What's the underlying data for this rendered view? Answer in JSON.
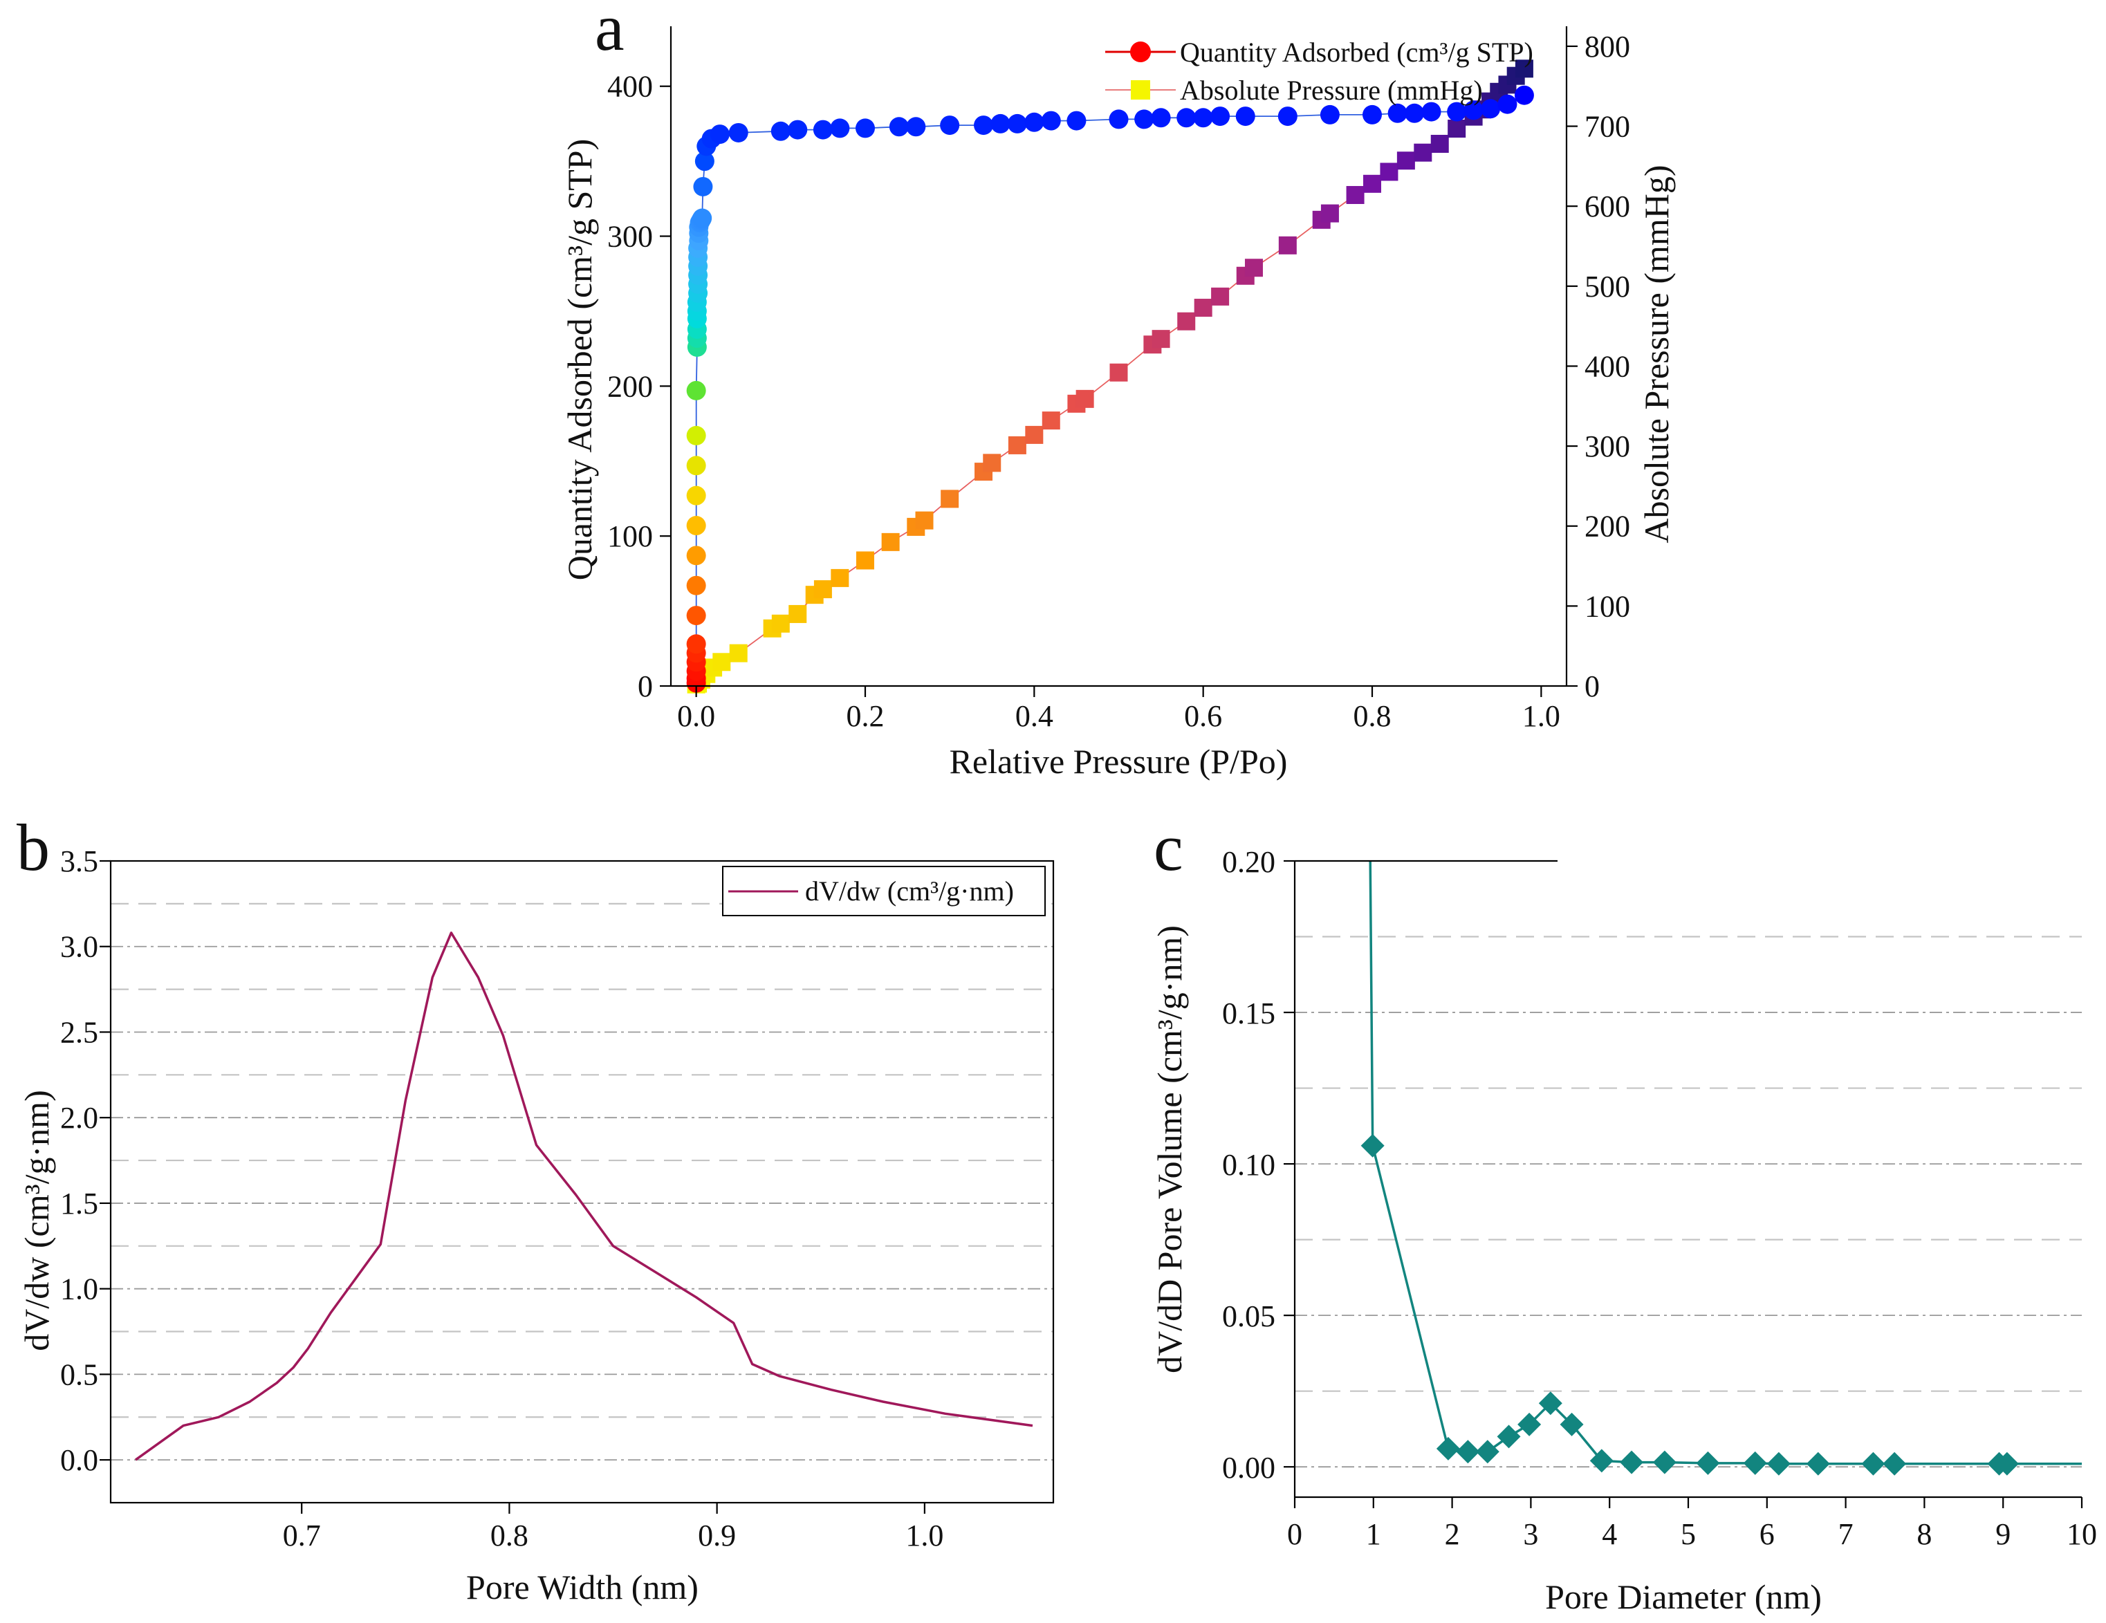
{
  "panels": {
    "a": {
      "letter": "a"
    },
    "b": {
      "letter": "b"
    },
    "c": {
      "letter": "c"
    }
  },
  "colors": {
    "panel_b_line": "#a0185a",
    "panel_c_line": "#12857f",
    "series_a1_start": "#ff0000",
    "series_a2_start": "#f5f500"
  },
  "chart_data": [
    {
      "id": "a",
      "type": "scatter",
      "title": "",
      "xlabel": "Relative Pressure (P/Po)",
      "ylabel": "Quantity Adsorbed (cm³/g STP)",
      "y2label": "Absolute Pressure (mmHg)",
      "xlim": [
        -0.03,
        1.03
      ],
      "ylim": [
        0,
        440
      ],
      "y2lim": [
        0,
        825
      ],
      "xticks": [
        0.0,
        0.2,
        0.4,
        0.6,
        0.8,
        1.0
      ],
      "xtick_labels": [
        "0.0",
        "0.2",
        "0.4",
        "0.6",
        "0.8",
        "1.0"
      ],
      "yticks": [
        0,
        100,
        200,
        300,
        400
      ],
      "ytick_labels": [
        "0",
        "100",
        "200",
        "300",
        "400"
      ],
      "y2ticks": [
        0,
        100,
        200,
        300,
        400,
        500,
        600,
        700,
        800
      ],
      "y2tick_labels": [
        "0",
        "100",
        "200",
        "300",
        "400",
        "500",
        "600",
        "700",
        "800"
      ],
      "legend": [
        "Quantity Adsorbed (cm³/g STP)",
        "Absolute Pressure (mmHg)"
      ],
      "legend_position": "top-right",
      "series": [
        {
          "name": "Quantity Adsorbed (cm³/g STP)",
          "axis": "left",
          "marker": "circle",
          "x": [
            0.0,
            0.0,
            0.0,
            0.0,
            0.0,
            0.0,
            0.0,
            0.0,
            0.0,
            0.0,
            0.0,
            0.0,
            0.0,
            0.0,
            0.001,
            0.001,
            0.001,
            0.001,
            0.001,
            0.001,
            0.002,
            0.002,
            0.002,
            0.002,
            0.002,
            0.002,
            0.003,
            0.003,
            0.003,
            0.004,
            0.005,
            0.006,
            0.007,
            0.008,
            0.01,
            0.012,
            0.018,
            0.028,
            0.05,
            0.1,
            0.12,
            0.15,
            0.17,
            0.2,
            0.24,
            0.26,
            0.3,
            0.34,
            0.36,
            0.38,
            0.4,
            0.42,
            0.45,
            0.5,
            0.53,
            0.55,
            0.58,
            0.6,
            0.62,
            0.65,
            0.7,
            0.75,
            0.8,
            0.83,
            0.85,
            0.87,
            0.9,
            0.92,
            0.94,
            0.96,
            0.98
          ],
          "y": [
            2,
            5,
            10,
            16,
            22,
            28,
            47,
            67,
            87,
            107,
            127,
            147,
            167,
            197,
            226,
            232,
            238,
            245,
            250,
            256,
            262,
            268,
            274,
            280,
            286,
            292,
            297,
            302,
            306,
            309,
            310,
            311,
            312,
            333,
            350,
            360,
            365,
            368,
            369,
            370,
            371,
            371,
            372,
            372,
            373,
            373,
            374,
            374,
            375,
            375,
            376,
            377,
            377,
            378,
            378,
            379,
            379,
            379,
            380,
            380,
            380,
            381,
            381,
            382,
            382,
            383,
            383,
            384,
            385,
            388,
            394
          ]
        },
        {
          "name": "Absolute Pressure (mmHg)",
          "axis": "right",
          "marker": "square",
          "x": [
            0.0,
            0.002,
            0.006,
            0.012,
            0.02,
            0.03,
            0.05,
            0.09,
            0.1,
            0.12,
            0.14,
            0.15,
            0.17,
            0.2,
            0.23,
            0.26,
            0.27,
            0.3,
            0.34,
            0.35,
            0.38,
            0.4,
            0.42,
            0.45,
            0.46,
            0.5,
            0.54,
            0.55,
            0.58,
            0.6,
            0.62,
            0.65,
            0.66,
            0.7,
            0.74,
            0.75,
            0.78,
            0.8,
            0.82,
            0.84,
            0.86,
            0.88,
            0.9,
            0.92,
            0.93,
            0.94,
            0.95,
            0.96,
            0.97,
            0.98
          ],
          "y": [
            2,
            3,
            8,
            15,
            23,
            30,
            41,
            72,
            78,
            90,
            114,
            121,
            135,
            157,
            180,
            199,
            207,
            234,
            268,
            279,
            301,
            314,
            332,
            353,
            359,
            392,
            427,
            434,
            456,
            473,
            487,
            513,
            523,
            551,
            583,
            591,
            614,
            628,
            643,
            657,
            667,
            678,
            697,
            712,
            721,
            731,
            743,
            752,
            763,
            772
          ]
        }
      ]
    },
    {
      "id": "b",
      "type": "line",
      "title": "",
      "xlabel": "Pore Width (nm)",
      "ylabel": "dV/dw (cm³/g·nm)",
      "xlim": [
        0.608,
        1.062
      ],
      "ylim": [
        -0.25,
        3.5
      ],
      "xticks": [
        0.7,
        0.8,
        0.9,
        1.0
      ],
      "xtick_labels": [
        "0.7",
        "0.8",
        "0.9",
        "1.0"
      ],
      "yticks": [
        0.0,
        0.5,
        1.0,
        1.5,
        2.0,
        2.5,
        3.0,
        3.5
      ],
      "ytick_labels": [
        "0.0",
        "0.5",
        "1.0",
        "1.5",
        "2.0",
        "2.5",
        "3.0",
        "3.5"
      ],
      "legend": [
        "dV/dw (cm³/g·nm)"
      ],
      "legend_position": "top-right",
      "series": [
        {
          "name": "dV/dw (cm³/g·nm)",
          "x": [
            0.62,
            0.643,
            0.66,
            0.675,
            0.688,
            0.696,
            0.703,
            0.714,
            0.726,
            0.738,
            0.75,
            0.763,
            0.772,
            0.785,
            0.797,
            0.813,
            0.832,
            0.85,
            0.87,
            0.89,
            0.908,
            0.917,
            0.93,
            0.955,
            0.98,
            1.01,
            1.052
          ],
          "y": [
            0.0,
            0.2,
            0.25,
            0.34,
            0.45,
            0.54,
            0.65,
            0.86,
            1.06,
            1.26,
            2.1,
            2.82,
            3.08,
            2.82,
            2.48,
            1.84,
            1.55,
            1.25,
            1.1,
            0.95,
            0.8,
            0.56,
            0.49,
            0.41,
            0.34,
            0.27,
            0.2
          ]
        }
      ]
    },
    {
      "id": "c",
      "type": "line",
      "title": "",
      "xlabel": "Pore Diameter (nm)",
      "ylabel": "dV/dD Pore Volume (cm³/g·nm)",
      "xlim": [
        0,
        10
      ],
      "ylim": [
        -0.01,
        0.2
      ],
      "xticks": [
        0,
        1,
        2,
        3,
        4,
        5,
        6,
        7,
        8,
        9,
        10
      ],
      "xtick_labels": [
        "0",
        "1",
        "2",
        "3",
        "4",
        "5",
        "6",
        "7",
        "8",
        "9",
        "10"
      ],
      "yticks": [
        0.0,
        0.05,
        0.1,
        0.15,
        0.2
      ],
      "ytick_labels": [
        "0.00",
        "0.05",
        "0.10",
        "0.15",
        "0.20"
      ],
      "legend": [],
      "series": [
        {
          "name": "dV/dD Pore Volume",
          "marker": "diamond",
          "x": [
            0.96,
            0.99,
            1.95,
            2.2,
            2.45,
            2.72,
            2.98,
            3.25,
            3.52,
            3.9,
            4.28,
            4.7,
            5.25,
            5.85,
            6.15,
            6.65,
            7.35,
            7.62,
            8.95,
            9.05,
            10.0
          ],
          "y": [
            0.2,
            0.106,
            0.006,
            0.005,
            0.005,
            0.01,
            0.014,
            0.021,
            0.014,
            0.002,
            0.0015,
            0.0015,
            0.0012,
            0.0012,
            0.001,
            0.001,
            0.001,
            0.001,
            0.001,
            0.001,
            0.001
          ],
          "marker_mask": [
            false,
            true,
            true,
            true,
            true,
            true,
            true,
            true,
            true,
            true,
            true,
            true,
            true,
            true,
            true,
            true,
            true,
            true,
            true,
            true,
            false
          ]
        }
      ]
    }
  ]
}
